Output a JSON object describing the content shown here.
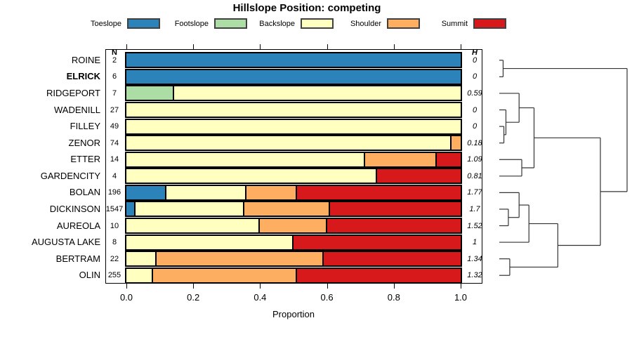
{
  "columns": {
    "n": "N",
    "h": "H"
  },
  "legend": [
    {
      "label": "Toeslope",
      "color": "#2B83BA"
    },
    {
      "label": "Footslope",
      "color": "#ABDDA4"
    },
    {
      "label": "Backslope",
      "color": "#FFFFBF"
    },
    {
      "label": "Shoulder",
      "color": "#FDAE61"
    },
    {
      "label": "Summit",
      "color": "#D7191C"
    }
  ],
  "chart_data": {
    "type": "bar",
    "stacked": true,
    "orientation": "horizontal",
    "title": "Hillslope Position: competing",
    "xlabel": "Proportion",
    "xlim": [
      0,
      1
    ],
    "x_tick_labels": [
      "0.0",
      "0.2",
      "0.4",
      "0.6",
      "0.8",
      "1.0"
    ],
    "x_tick_values": [
      0,
      0.2,
      0.4,
      0.6,
      0.8,
      1.0
    ],
    "categories": [
      "Toeslope",
      "Footslope",
      "Backslope",
      "Shoulder",
      "Summit"
    ],
    "category_colors": [
      "#2B83BA",
      "#ABDDA4",
      "#FFFFBF",
      "#FDAE61",
      "#D7191C"
    ],
    "rows": [
      {
        "name": "ROINE",
        "bold": false,
        "n": "2",
        "h": "0",
        "values": [
          1,
          0,
          0,
          0,
          0
        ]
      },
      {
        "name": "ELRICK",
        "bold": true,
        "n": "6",
        "h": "0",
        "values": [
          1,
          0,
          0,
          0,
          0
        ]
      },
      {
        "name": "RIDGEPORT",
        "bold": false,
        "n": "7",
        "h": "0.59",
        "values": [
          0,
          0.143,
          0.857,
          0,
          0
        ]
      },
      {
        "name": "WADENILL",
        "bold": false,
        "n": "27",
        "h": "0",
        "values": [
          0,
          0,
          1,
          0,
          0
        ]
      },
      {
        "name": "FILLEY",
        "bold": false,
        "n": "49",
        "h": "0",
        "values": [
          0,
          0,
          1,
          0,
          0
        ]
      },
      {
        "name": "ZENOR",
        "bold": false,
        "n": "74",
        "h": "0.18",
        "values": [
          0,
          0,
          0.973,
          0.027,
          0
        ]
      },
      {
        "name": "ETTER",
        "bold": false,
        "n": "14",
        "h": "1.09",
        "values": [
          0,
          0,
          0.714,
          0.214,
          0.072
        ]
      },
      {
        "name": "GARDENCITY",
        "bold": false,
        "n": "4",
        "h": "0.81",
        "values": [
          0,
          0,
          0.75,
          0,
          0.25
        ]
      },
      {
        "name": "BOLAN",
        "bold": false,
        "n": "196",
        "h": "1.77",
        "values": [
          0.12,
          0,
          0.24,
          0.15,
          0.49
        ]
      },
      {
        "name": "DICKINSON",
        "bold": false,
        "n": "1547",
        "h": "1.7",
        "values": [
          0.027,
          0,
          0.325,
          0.258,
          0.39
        ]
      },
      {
        "name": "AUREOLA",
        "bold": false,
        "n": "10",
        "h": "1.52",
        "values": [
          0,
          0,
          0.4,
          0.2,
          0.4
        ]
      },
      {
        "name": "AUGUSTA LAKE",
        "bold": false,
        "n": "8",
        "h": "1",
        "values": [
          0,
          0,
          0.5,
          0,
          0.5
        ]
      },
      {
        "name": "BERTRAM",
        "bold": false,
        "n": "22",
        "h": "1.34",
        "values": [
          0,
          0,
          0.09,
          0.5,
          0.41
        ]
      },
      {
        "name": "OLIN",
        "bold": false,
        "n": "255",
        "h": "1.32",
        "values": [
          0,
          0,
          0.08,
          0.43,
          0.49
        ]
      }
    ]
  },
  "dendrogram": {
    "leaf_order": [
      "ROINE",
      "ELRICK",
      "RIDGEPORT",
      "WADENILL",
      "FILLEY",
      "ZENOR",
      "ETTER",
      "GARDENCITY",
      "BOLAN",
      "DICKINSON",
      "AUREOLA",
      "AUGUSTA LAKE",
      "BERTRAM",
      "OLIN"
    ],
    "merges": [
      {
        "a": "ROINE",
        "b": "ELRICK",
        "h": 0.03
      },
      {
        "a": "FILLEY",
        "b": "ZENOR",
        "h": 0.036
      },
      {
        "a": "WADENILL",
        "b": "#1",
        "h": 0.052
      },
      {
        "a": "RIDGEPORT",
        "b": "#2",
        "h": 0.155
      },
      {
        "a": "ETTER",
        "b": "GARDENCITY",
        "h": 0.176
      },
      {
        "a": "#3",
        "b": "#4",
        "h": 0.272
      },
      {
        "a": "DICKINSON",
        "b": "AUREOLA",
        "h": 0.071
      },
      {
        "a": "BOLAN",
        "b": "#6",
        "h": 0.155
      },
      {
        "a": "#7",
        "b": "AUGUSTA LAKE",
        "h": 0.232
      },
      {
        "a": "BERTRAM",
        "b": "OLIN",
        "h": 0.082
      },
      {
        "a": "#8",
        "b": "#9",
        "h": 0.458
      },
      {
        "a": "#5",
        "b": "#10",
        "h": 0.791
      },
      {
        "a": "#0",
        "b": "#11",
        "h": 1.0
      }
    ]
  }
}
